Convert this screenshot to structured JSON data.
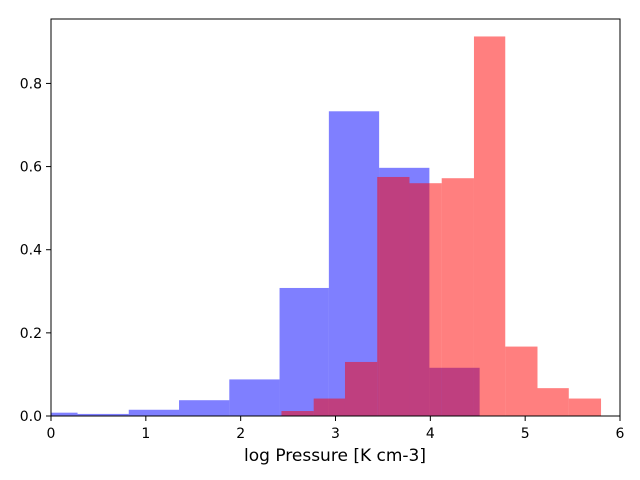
{
  "chart_data": {
    "type": "histogram",
    "xlabel": "log Pressure [K cm-3]",
    "ylabel": "",
    "title": "",
    "xlim": [
      0,
      6
    ],
    "ylim": [
      0,
      0.955
    ],
    "xticks": [
      0,
      1,
      2,
      3,
      4,
      5,
      6
    ],
    "yticks": [
      0.0,
      0.2,
      0.4,
      0.6,
      0.8
    ],
    "ytick_labels": [
      "0.0",
      "0.2",
      "0.4",
      "0.6",
      "0.8"
    ],
    "grid": false,
    "series": [
      {
        "color": "#0000ff",
        "opacity": 0.5,
        "bin_edges": [
          0.0,
          0.28,
          0.82,
          1.35,
          1.88,
          2.41,
          2.93,
          3.46,
          3.99,
          4.52
        ],
        "values": [
          0.008,
          0.005,
          0.015,
          0.038,
          0.088,
          0.308,
          0.733,
          0.597,
          0.116
        ]
      },
      {
        "color": "#ff0000",
        "opacity": 0.5,
        "bin_edges": [
          2.43,
          2.77,
          3.1,
          3.44,
          3.78,
          4.12,
          4.46,
          4.79,
          5.13,
          5.46,
          5.8
        ],
        "values": [
          0.012,
          0.042,
          0.13,
          0.575,
          0.56,
          0.572,
          0.913,
          0.167,
          0.067,
          0.042
        ]
      }
    ]
  }
}
